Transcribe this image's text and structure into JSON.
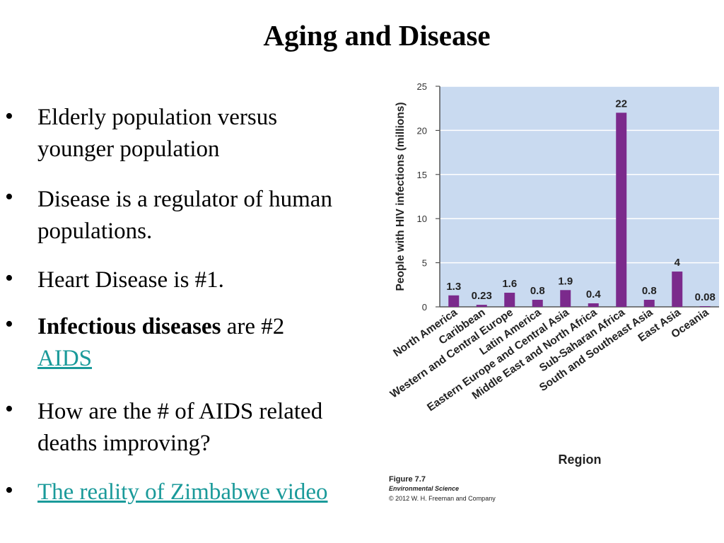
{
  "slide": {
    "title": "Aging and Disease",
    "bullets": [
      {
        "line1": "Elderly population versus",
        "line2": "younger population"
      },
      {
        "line1": "Disease is a regulator of human",
        "line2": "populations."
      },
      {
        "line1": "Heart Disease is #1."
      },
      {
        "bold": "Infectious diseases",
        "rest": " are #2",
        "link": "AIDS"
      },
      {
        "line1": "How are the # of AIDS related",
        "line2": "deaths improving?"
      },
      {
        "link": "The reality of Zimbabwe video"
      }
    ],
    "bullet_symbol": "•",
    "link_color": "#1a9a9a"
  },
  "chart_data": {
    "type": "bar",
    "ylabel": "People with HIV infections (millions)",
    "xlabel": "Region",
    "ylim": [
      0,
      25
    ],
    "yticks": [
      0,
      5,
      10,
      15,
      20,
      25
    ],
    "categories": [
      "North America",
      "Caribbean",
      "Western and Central Europe",
      "Latin America",
      "Eastern Europe and Central Asia",
      "Middle East and North Africa",
      "Sub-Saharan Africa",
      "South and Southeast Asia",
      "East Asia",
      "Oceania"
    ],
    "values": [
      1.3,
      0.23,
      1.6,
      0.8,
      1.9,
      0.4,
      22,
      0.8,
      4,
      0.08
    ],
    "value_labels": [
      "1.3",
      "0.23",
      "1.6",
      "0.8",
      "1.9",
      "0.4",
      "22",
      "0.8",
      "4",
      "0.08"
    ],
    "bar_color": "#7b2a8c",
    "plot_background": "#c9daf0",
    "grid": true,
    "caption_line1": "Figure 7.7",
    "caption_line2": "Environmental Science",
    "caption_line3": "© 2012 W. H. Freeman and Company"
  }
}
